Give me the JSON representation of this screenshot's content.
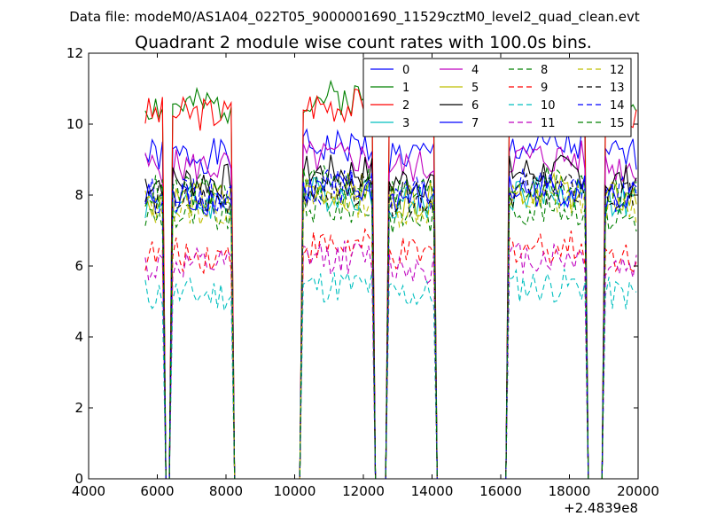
{
  "chart_data": {
    "type": "line",
    "suptitle": "Data file: modeM0/AS1A04_022T05_9000001690_11529cztM0_level2_quad_clean.evt",
    "title": "Quadrant 2 module wise count rates with 100.0s bins.",
    "xlabel": "",
    "ylabel": "",
    "x_offset_label": "+2.4839e8",
    "xlim": [
      4000,
      20000
    ],
    "ylim": [
      0,
      12
    ],
    "xticks": [
      4000,
      6000,
      8000,
      10000,
      12000,
      14000,
      16000,
      18000,
      20000
    ],
    "yticks": [
      0,
      2,
      4,
      6,
      8,
      10,
      12
    ],
    "grid": false,
    "legend_position": "top-right",
    "segments": [
      [
        5650,
        6150
      ],
      [
        6450,
        8150
      ],
      [
        10250,
        12250
      ],
      [
        12750,
        14050
      ],
      [
        16250,
        18450
      ],
      [
        19050,
        19950
      ]
    ],
    "gaps": [
      [
        6250,
        6350
      ],
      [
        8350,
        10150
      ],
      [
        12350,
        12650
      ],
      [
        14150,
        16150
      ],
      [
        18550,
        18950
      ]
    ],
    "series": [
      {
        "name": "0",
        "color": "#0000ff",
        "dash": false,
        "level": 9.1
      },
      {
        "name": "1",
        "color": "#008000",
        "dash": false,
        "level": 10.5
      },
      {
        "name": "2",
        "color": "#ff0000",
        "dash": false,
        "level": 10.3
      },
      {
        "name": "3",
        "color": "#00bfbf",
        "dash": false,
        "level": 7.8
      },
      {
        "name": "4",
        "color": "#bf00bf",
        "dash": false,
        "level": 8.8
      },
      {
        "name": "5",
        "color": "#bfbf00",
        "dash": false,
        "level": 7.9
      },
      {
        "name": "6",
        "color": "#000000",
        "dash": false,
        "level": 8.4
      },
      {
        "name": "7",
        "color": "#0000ff",
        "dash": false,
        "level": 7.9
      },
      {
        "name": "8",
        "color": "#008000",
        "dash": true,
        "level": 7.4
      },
      {
        "name": "9",
        "color": "#ff0000",
        "dash": true,
        "level": 6.3
      },
      {
        "name": "10",
        "color": "#00bfbf",
        "dash": true,
        "level": 5.2
      },
      {
        "name": "11",
        "color": "#bf00bf",
        "dash": true,
        "level": 6.0
      },
      {
        "name": "12",
        "color": "#bfbf00",
        "dash": true,
        "level": 7.6
      },
      {
        "name": "13",
        "color": "#000000",
        "dash": true,
        "level": 7.9
      },
      {
        "name": "14",
        "color": "#0000ff",
        "dash": true,
        "level": 8.0
      },
      {
        "name": "15",
        "color": "#008000",
        "dash": true,
        "level": 8.1
      }
    ]
  }
}
